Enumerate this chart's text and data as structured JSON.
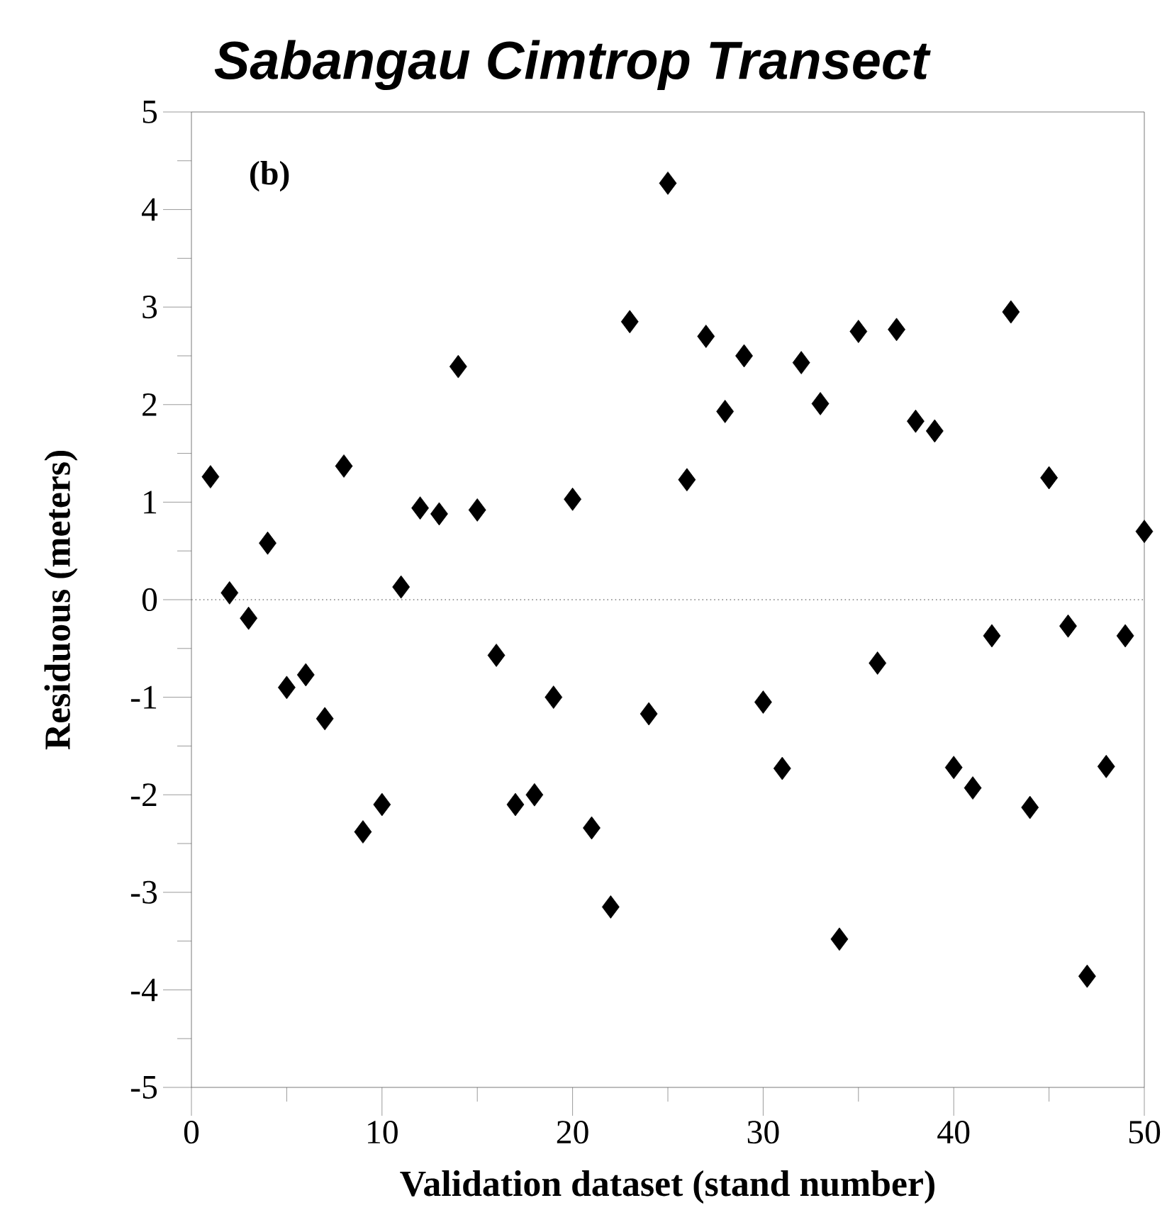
{
  "chart_data": {
    "type": "scatter",
    "title": "Sabangau Cimtrop Transect",
    "xlabel": "Validation dataset (stand number)",
    "ylabel": "Residuous  (meters)",
    "annotations": [
      "(b)"
    ],
    "x": [
      1,
      2,
      3,
      4,
      5,
      6,
      7,
      8,
      9,
      10,
      11,
      12,
      13,
      14,
      15,
      16,
      17,
      18,
      19,
      20,
      21,
      22,
      23,
      24,
      25,
      26,
      27,
      28,
      29,
      30,
      31,
      32,
      33,
      34,
      35,
      36,
      37,
      38,
      39,
      40,
      41,
      42,
      43,
      44,
      45,
      46,
      47,
      48,
      49,
      50
    ],
    "series": [
      {
        "color": "#000000",
        "values": [
          1.26,
          0.07,
          -0.19,
          0.58,
          -0.9,
          -0.77,
          -1.22,
          1.37,
          -2.38,
          -2.1,
          0.13,
          0.94,
          0.88,
          2.39,
          0.92,
          -0.57,
          -2.1,
          -2.0,
          -1.0,
          1.03,
          -2.34,
          -3.15,
          2.85,
          -1.17,
          4.27,
          1.23,
          2.7,
          1.93,
          2.5,
          -1.05,
          -1.73,
          2.43,
          2.01,
          -3.48,
          2.75,
          -0.65,
          2.77,
          1.83,
          1.73,
          -1.72,
          -1.93,
          -0.37,
          2.95,
          -2.13,
          1.25,
          -0.27,
          -3.86,
          -1.71,
          -0.37,
          0.7
        ]
      }
    ],
    "marker": "diamond",
    "xlim": [
      0,
      50
    ],
    "ylim": [
      -5,
      5
    ],
    "xticks": [
      0,
      10,
      20,
      30,
      40,
      50
    ],
    "yticks": [
      -5,
      -4,
      -3,
      -2,
      -1,
      0,
      1,
      2,
      3,
      4,
      5
    ],
    "ref_lines": [
      {
        "axis": "y",
        "value": 0,
        "color": "#808080",
        "line_style": "dotted"
      }
    ],
    "grid": false
  }
}
